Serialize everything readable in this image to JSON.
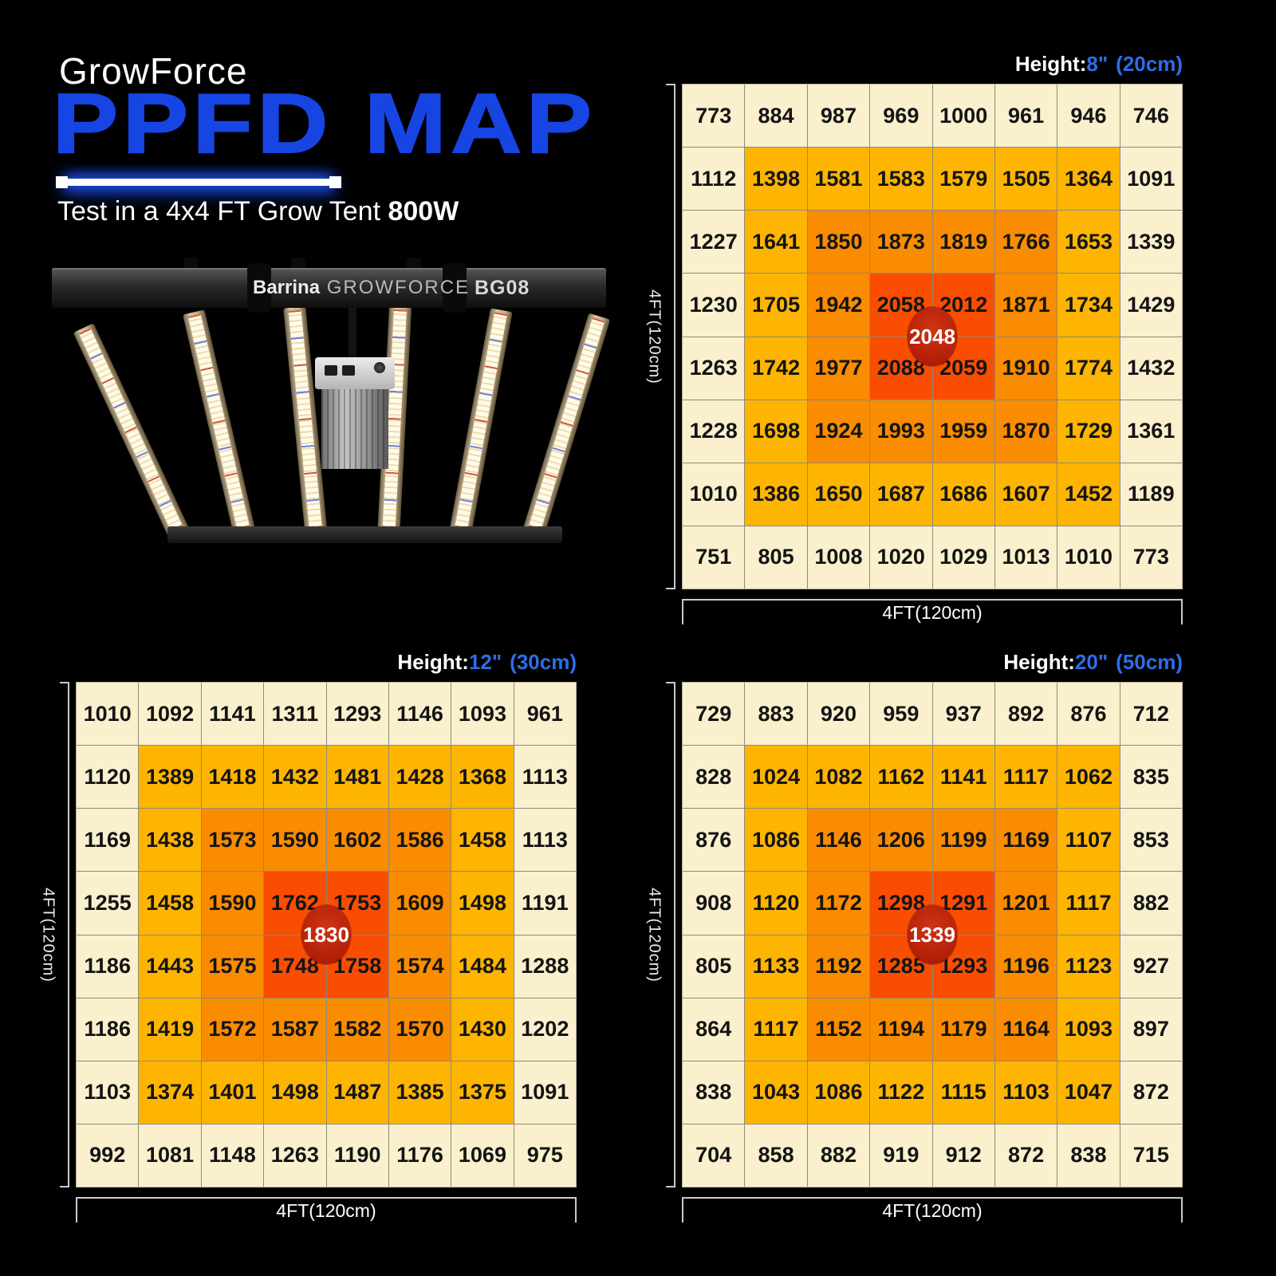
{
  "header": {
    "brand": "GrowForce",
    "title": "PPFD MAP",
    "subtitle": "Test in a 4x4 FT Grow Tent ",
    "subtitle_bold": "800W"
  },
  "fixture": {
    "brand": "Barrina",
    "series": "GROWFORCE",
    "model": "BG08"
  },
  "colors": {
    "background": "#000000",
    "title_blue": "#1745e4",
    "height_blue": "#2e6de8",
    "cell_cream": "#faf0cd",
    "cell_yellow": "#feb502",
    "cell_orange": "#f98c00",
    "cell_hot": "#f94e02",
    "center_badge_red": "#b52108"
  },
  "chart_data": {
    "type": "heatmap",
    "title": "GrowForce PPFD MAP",
    "subtitle": "Test in a 4x4 FT Grow Tent 800W",
    "heat_levels": [
      [
        0,
        0,
        0,
        0,
        0,
        0,
        0,
        0
      ],
      [
        0,
        1,
        1,
        1,
        1,
        1,
        1,
        0
      ],
      [
        0,
        1,
        2,
        2,
        2,
        2,
        1,
        0
      ],
      [
        0,
        1,
        2,
        3,
        3,
        2,
        1,
        0
      ],
      [
        0,
        1,
        2,
        3,
        3,
        2,
        1,
        0
      ],
      [
        0,
        1,
        2,
        2,
        2,
        2,
        1,
        0
      ],
      [
        0,
        1,
        1,
        1,
        1,
        1,
        1,
        0
      ],
      [
        0,
        0,
        0,
        0,
        0,
        0,
        0,
        0
      ]
    ],
    "maps": [
      {
        "height_label": "Height:",
        "height_value": "8\"",
        "height_metric": "(20cm)",
        "x_axis": "4FT(120cm)",
        "y_axis": "4FT(120cm)",
        "center_value": "2048",
        "rows": [
          [
            773,
            884,
            987,
            969,
            1000,
            961,
            946,
            746
          ],
          [
            1112,
            1398,
            1581,
            1583,
            1579,
            1505,
            1364,
            1091
          ],
          [
            1227,
            1641,
            1850,
            1873,
            1819,
            1766,
            1653,
            1339
          ],
          [
            1230,
            1705,
            1942,
            2058,
            2012,
            1871,
            1734,
            1429
          ],
          [
            1263,
            1742,
            1977,
            2088,
            2059,
            1910,
            1774,
            1432
          ],
          [
            1228,
            1698,
            1924,
            1993,
            1959,
            1870,
            1729,
            1361
          ],
          [
            1010,
            1386,
            1650,
            1687,
            1686,
            1607,
            1452,
            1189
          ],
          [
            751,
            805,
            1008,
            1020,
            1029,
            1013,
            1010,
            773
          ]
        ]
      },
      {
        "height_label": "Height:",
        "height_value": "12\"",
        "height_metric": "(30cm)",
        "x_axis": "4FT(120cm)",
        "y_axis": "4FT(120cm)",
        "center_value": "1830",
        "rows": [
          [
            1010,
            1092,
            1141,
            1311,
            1293,
            1146,
            1093,
            961
          ],
          [
            1120,
            1389,
            1418,
            1432,
            1481,
            1428,
            1368,
            1113
          ],
          [
            1169,
            1438,
            1573,
            1590,
            1602,
            1586,
            1458,
            1113
          ],
          [
            1255,
            1458,
            1590,
            1762,
            1753,
            1609,
            1498,
            1191
          ],
          [
            1186,
            1443,
            1575,
            1748,
            1758,
            1574,
            1484,
            1288
          ],
          [
            1186,
            1419,
            1572,
            1587,
            1582,
            1570,
            1430,
            1202
          ],
          [
            1103,
            1374,
            1401,
            1498,
            1487,
            1385,
            1375,
            1091
          ],
          [
            992,
            1081,
            1148,
            1263,
            1190,
            1176,
            1069,
            975
          ]
        ]
      },
      {
        "height_label": "Height:",
        "height_value": "20\"",
        "height_metric": "(50cm)",
        "x_axis": "4FT(120cm)",
        "y_axis": "4FT(120cm)",
        "center_value": "1339",
        "rows": [
          [
            729,
            883,
            920,
            959,
            937,
            892,
            876,
            712
          ],
          [
            828,
            1024,
            1082,
            1162,
            1141,
            1117,
            1062,
            835
          ],
          [
            876,
            1086,
            1146,
            1206,
            1199,
            1169,
            1107,
            853
          ],
          [
            908,
            1120,
            1172,
            1298,
            1291,
            1201,
            1117,
            882
          ],
          [
            805,
            1133,
            1192,
            1285,
            1293,
            1196,
            1123,
            927
          ],
          [
            864,
            1117,
            1152,
            1194,
            1179,
            1164,
            1093,
            897
          ],
          [
            838,
            1043,
            1086,
            1122,
            1115,
            1103,
            1047,
            872
          ],
          [
            704,
            858,
            882,
            919,
            912,
            872,
            838,
            715
          ]
        ]
      }
    ]
  }
}
